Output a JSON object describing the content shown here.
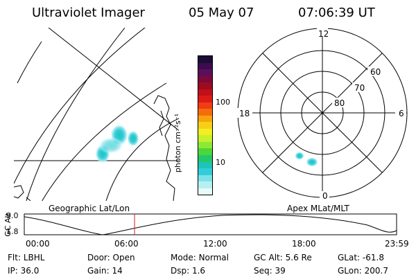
{
  "header": {
    "instrument": "Ultraviolet Imager",
    "date": "05 May 07",
    "time": "07:06:39 UT"
  },
  "geo_panel": {
    "label": "Geographic Lat/Lon"
  },
  "polar_panel": {
    "label": "Apex MLat/MLT",
    "mlt_labels": {
      "top": "12",
      "left": "18",
      "right": "6",
      "bottom": "0"
    },
    "lat_labels": [
      "60",
      "70",
      "80"
    ]
  },
  "colorbar": {
    "unit_label": "photon cm⁻²s⁻¹",
    "ticks": [
      "100",
      "10"
    ],
    "colors": [
      "#1b0d33",
      "#3d0b4f",
      "#5b0f5a",
      "#7a0a3a",
      "#9c0b1e",
      "#c0101a",
      "#dd1a18",
      "#f03c14",
      "#f56d0a",
      "#f8a40c",
      "#f6d017",
      "#f1ef22",
      "#c6f02a",
      "#8ee936",
      "#4dd63a",
      "#23c86c",
      "#1fc4b8",
      "#33cdd9",
      "#7ce2ea",
      "#b6f0f1",
      "#e8fbfb"
    ]
  },
  "altitude_plot": {
    "ylabel": "GC Alt",
    "y_ticks": [
      "9.0",
      "1.8"
    ],
    "x_ticks": [
      "00:00",
      "06:00",
      "12:00",
      "18:00",
      "23:59"
    ],
    "marker_color": "#d02020",
    "current_time_hours": 7.11
  },
  "status": {
    "row1": [
      {
        "label": "Flt:",
        "value": "LBHL"
      },
      {
        "label": "Door:",
        "value": "Open"
      },
      {
        "label": "Mode:",
        "value": "Normal"
      },
      {
        "label": "GC Alt:",
        "value": "5.6 Re"
      },
      {
        "label": "GLat:",
        "value": "-61.8"
      }
    ],
    "row2": [
      {
        "label": "IP:",
        "value": "36.0"
      },
      {
        "label": "Gain:",
        "value": "14"
      },
      {
        "label": "Dsp:",
        "value": "1.6"
      },
      {
        "label": "Seq:",
        "value": "39"
      },
      {
        "label": "GLon:",
        "value": "200.7"
      }
    ]
  }
}
